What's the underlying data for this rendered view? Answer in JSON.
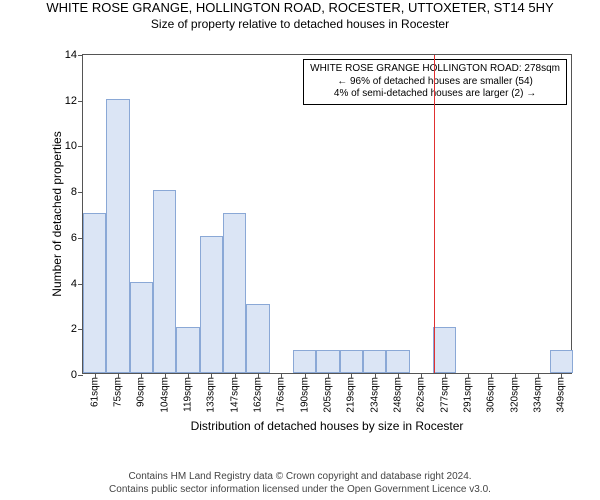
{
  "header": {
    "title": "WHITE ROSE GRANGE, HOLLINGTON ROAD, ROCESTER, UTTOXETER, ST14 5HY",
    "subtitle": "Size of property relative to detached houses in Rocester"
  },
  "chart": {
    "type": "histogram",
    "ylabel": "Number of detached properties",
    "xlabel": "Distribution of detached houses by size in Rocester",
    "ylim": [
      0,
      14
    ],
    "ytick_step": 2,
    "categories": [
      "61sqm",
      "75sqm",
      "90sqm",
      "104sqm",
      "119sqm",
      "133sqm",
      "147sqm",
      "162sqm",
      "176sqm",
      "190sqm",
      "205sqm",
      "219sqm",
      "234sqm",
      "248sqm",
      "262sqm",
      "277sqm",
      "291sqm",
      "306sqm",
      "320sqm",
      "334sqm",
      "349sqm"
    ],
    "values": [
      7,
      12,
      4,
      8,
      2,
      6,
      7,
      3,
      0,
      1,
      1,
      1,
      1,
      1,
      0,
      2,
      0,
      0,
      0,
      0,
      1
    ],
    "bar_fill": "#dbe5f5",
    "bar_border": "#8aa8d6",
    "axis_color": "#555555",
    "background_color": "#ffffff",
    "label_fontsize": 12,
    "tick_fontsize": 11,
    "marker": {
      "index_position": 15.05,
      "color": "#e03030"
    },
    "annotation": {
      "line1": "WHITE ROSE GRANGE HOLLINGTON ROAD: 278sqm",
      "line2": "← 96% of detached houses are smaller (54)",
      "line3": "4% of semi-detached houses are larger (2) →",
      "border_color": "#000000",
      "background_color": "#ffffff",
      "fontsize": 10
    }
  },
  "footer": {
    "line1": "Contains HM Land Registry data © Crown copyright and database right 2024.",
    "line2": "Contains public sector information licensed under the Open Government Licence v3.0."
  }
}
